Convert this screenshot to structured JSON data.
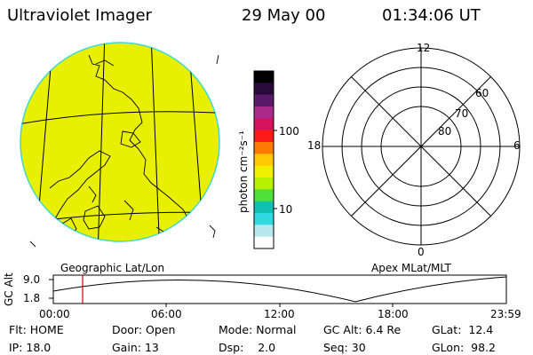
{
  "header": {
    "instrument": "Ultraviolet Imager",
    "date": "29 May 00",
    "time": "01:34:06 UT"
  },
  "earth_panel": {
    "caption": "Geographic Lat/Lon",
    "fill_color": "#e8f000",
    "edge_color": "#40d8d0"
  },
  "colorbar": {
    "unit_label": "photon cm⁻²s⁻¹",
    "ticks": [
      "100",
      "10"
    ],
    "colors": [
      "#000000",
      "#2a0a3a",
      "#5a1a6a",
      "#aa2a8a",
      "#d4145a",
      "#ff1a1a",
      "#ff7a00",
      "#ffc800",
      "#f0f000",
      "#b8f000",
      "#50e03a",
      "#10c0b0",
      "#30d8e0",
      "#b8e8ec",
      "#ffffff"
    ]
  },
  "polar_panel": {
    "caption": "Apex MLat/MLT",
    "mlt_labels": {
      "top": "12",
      "bottom": "0",
      "left": "18",
      "right": "6"
    },
    "mlat_labels": [
      "60",
      "70",
      "80"
    ]
  },
  "timeline": {
    "axis_label": "GC Alt",
    "y_ticks": [
      "9.0",
      "1.8"
    ],
    "x_ticks": [
      "00:00",
      "06:00",
      "12:00",
      "18:00",
      "23:59"
    ],
    "current_marker_color": "#d00000"
  },
  "status": {
    "row1": [
      {
        "label": "Flt:",
        "value": "HOME"
      },
      {
        "label": "Door:",
        "value": "Open"
      },
      {
        "label": "Mode:",
        "value": "Normal"
      },
      {
        "label": "GC Alt:",
        "value": "6.4 Re"
      },
      {
        "label": "GLat:",
        "value": "12.4"
      }
    ],
    "row2": [
      {
        "label": "IP:",
        "value": "18.0"
      },
      {
        "label": "Gain:",
        "value": "13"
      },
      {
        "label": "Dsp:",
        "value": "2.0"
      },
      {
        "label": "Seq:",
        "value": "30"
      },
      {
        "label": "GLon:",
        "value": "98.2"
      }
    ]
  }
}
